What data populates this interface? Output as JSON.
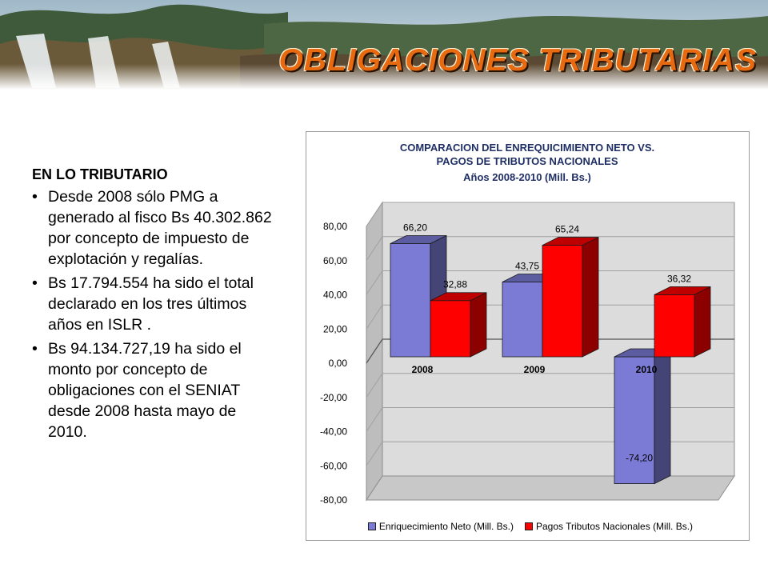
{
  "slide": {
    "title": "OBLIGACIONES TRIBUTARIAS"
  },
  "text": {
    "heading": "EN LO TRIBUTARIO",
    "bullets": [
      "Desde 2008 sólo PMG a generado al fisco Bs 40.302.862 por concepto de impuesto de explotación y regalías.",
      "Bs 17.794.554 ha sido el total declarado en los tres últimos años en ISLR .",
      "Bs 94.134.727,19  ha sido el monto por concepto de obligaciones con el SENIAT desde 2008 hasta mayo de 2010."
    ]
  },
  "colors": {
    "series1": "#7b7bd6",
    "series2": "#ff0000",
    "title": "#e86a10"
  },
  "chart_data": {
    "type": "bar",
    "title_lines": [
      "COMPARACION DEL ENREQUICIMIENTO NETO VS.",
      "PAGOS DE TRIBUTOS NACIONALES",
      "Años 2008-2010 (Mill. Bs.)"
    ],
    "categories": [
      "2008",
      "2009",
      "2010"
    ],
    "series": [
      {
        "name": "Enriquecimiento Neto (Mill. Bs.)",
        "values": [
          66.2,
          43.75,
          -74.2
        ],
        "labels": [
          "66,20",
          "43,75",
          "-74,20"
        ]
      },
      {
        "name": "Pagos Tributos Nacionales (Mill. Bs.)",
        "values": [
          32.88,
          65.24,
          36.32
        ],
        "labels": [
          "32,88",
          "65,24",
          "36,32"
        ]
      }
    ],
    "ylim": [
      -80,
      80
    ],
    "yticks": [
      80,
      60,
      40,
      20,
      0,
      -20,
      -40,
      -60,
      -80
    ],
    "ytick_labels": [
      "80,00",
      "60,00",
      "40,00",
      "20,00",
      "0,00",
      "-20,00",
      "-40,00",
      "-60,00",
      "-80,00"
    ],
    "grid": true,
    "legend_position": "bottom"
  }
}
